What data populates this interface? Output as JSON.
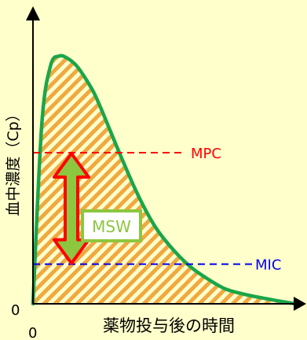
{
  "chart_data": {
    "type": "area",
    "ylabel": "血中濃度（Cp）",
    "xlabel": "薬物投与後の時間",
    "x_origin_label": "0",
    "y_origin_label": "0",
    "series": [
      {
        "x": [
          0,
          1,
          2,
          3,
          4,
          5,
          6,
          7,
          8,
          10,
          12,
          14,
          16,
          18,
          20,
          22,
          24,
          26,
          28,
          30
        ],
        "y": [
          0,
          72,
          96,
          100,
          99,
          96,
          91,
          85,
          77,
          60,
          44,
          31,
          22,
          15,
          10,
          6,
          4,
          2.5,
          1.2,
          0
        ]
      }
    ],
    "xlim": [
      0,
      30
    ],
    "ylim": [
      0,
      115
    ],
    "reference_lines": [
      {
        "label": "MPC",
        "y": 61,
        "color": "#ff0000"
      },
      {
        "label": "MIC",
        "y": 16,
        "color": "#0000ee"
      }
    ],
    "annotation": {
      "label": "MSW",
      "from": "MIC",
      "to": "MPC"
    },
    "colors": {
      "curve": "#1aa64a",
      "hatch": "#f0a840",
      "arrow_fill": "#8dc63f",
      "arrow_stroke": "#ff0000",
      "msw_box": "#8dc63f"
    }
  }
}
